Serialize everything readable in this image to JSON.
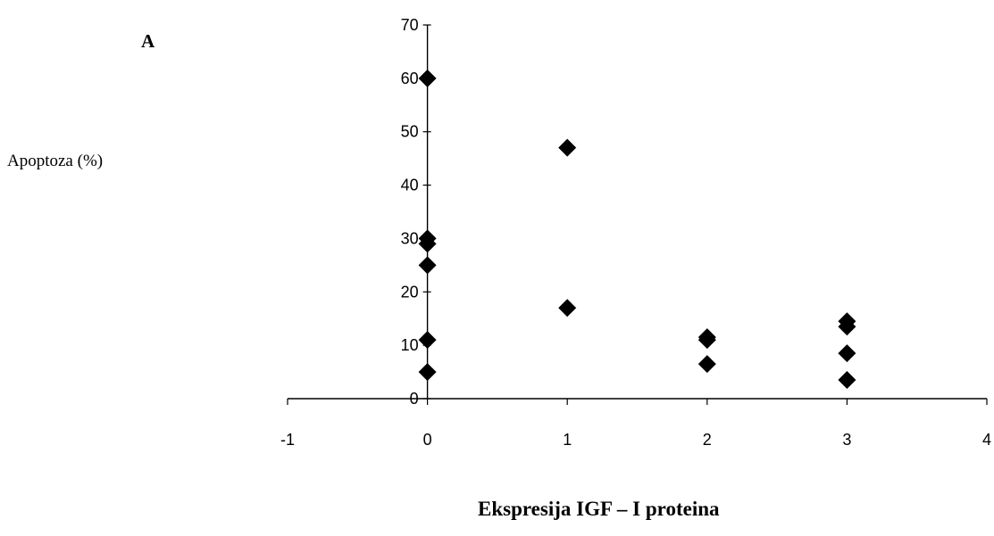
{
  "panel_label": "A",
  "chart_data": {
    "type": "scatter",
    "title": "",
    "xlabel": "Ekspresija IGF – I proteina",
    "ylabel": "Apoptoza (%)",
    "xlim": [
      -1,
      4
    ],
    "ylim": [
      0,
      70
    ],
    "xticks": [
      -1,
      0,
      1,
      2,
      3,
      4
    ],
    "yticks": [
      0,
      10,
      20,
      30,
      40,
      50,
      60,
      70
    ],
    "grid": false,
    "marker": "diamond",
    "marker_color": "#000000",
    "points": [
      {
        "x": 0,
        "y": 60
      },
      {
        "x": 0,
        "y": 30
      },
      {
        "x": 0,
        "y": 29
      },
      {
        "x": 0,
        "y": 25
      },
      {
        "x": 0,
        "y": 11
      },
      {
        "x": 0,
        "y": 5
      },
      {
        "x": 1,
        "y": 47
      },
      {
        "x": 1,
        "y": 17
      },
      {
        "x": 2,
        "y": 11.5
      },
      {
        "x": 2,
        "y": 11
      },
      {
        "x": 2,
        "y": 6.5
      },
      {
        "x": 3,
        "y": 14.5
      },
      {
        "x": 3,
        "y": 13.5
      },
      {
        "x": 3,
        "y": 8.5
      },
      {
        "x": 3,
        "y": 3.5
      }
    ]
  }
}
